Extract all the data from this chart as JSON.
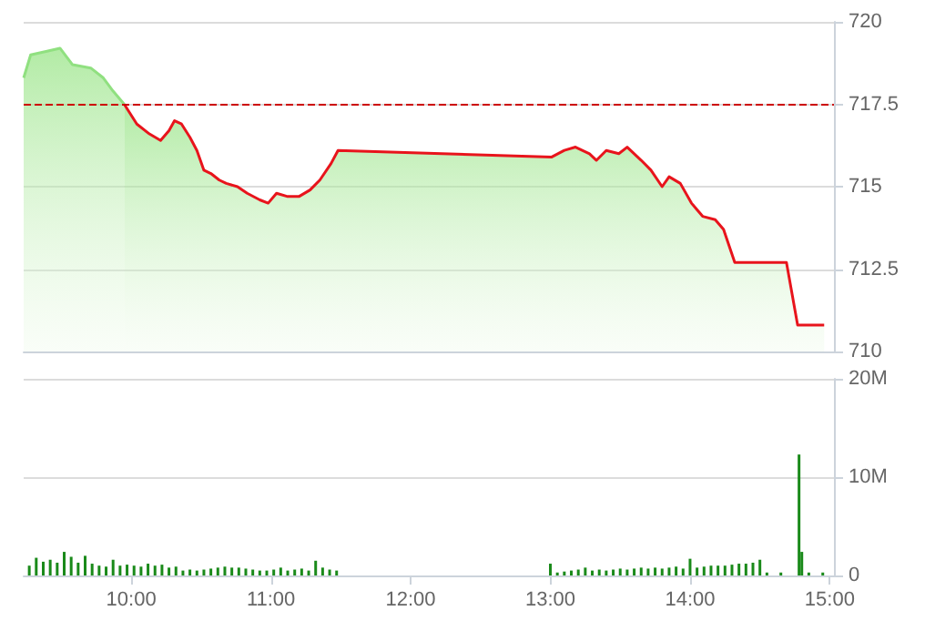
{
  "chart_data": [
    {
      "type": "area",
      "xlim": [
        9.23,
        15.03
      ],
      "ylim": [
        710,
        720
      ],
      "yticks": [
        710,
        {
          "value": 712.5,
          "label": "712.5"
        },
        715,
        {
          "value": 717.5,
          "label": "717.5"
        },
        720
      ],
      "grid": "y",
      "tick_labels": "y",
      "marker": "none",
      "ref_lines": [
        {
          "axis": "y",
          "value": 717.5,
          "color": "#cc0000",
          "line_style": "dashed"
        }
      ],
      "series": [
        {
          "color": "#90e080",
          "x": [
            9.23,
            9.28,
            9.39,
            9.49,
            9.58,
            9.71,
            9.8,
            9.87,
            9.95
          ],
          "values": [
            718.3,
            719.0,
            719.1,
            719.2,
            718.7,
            718.6,
            718.3,
            717.9,
            717.5
          ]
        },
        {
          "color": "#e8141c",
          "x": [
            9.95,
            10.04,
            10.13,
            10.21,
            10.27,
            10.31,
            10.36,
            10.42,
            10.47,
            10.52,
            10.57,
            10.63,
            10.68,
            10.76,
            10.83,
            10.92,
            10.98,
            11.04,
            11.12,
            11.2,
            11.28,
            11.35,
            11.43,
            11.48,
            13.01,
            13.1,
            13.18,
            13.28,
            13.33,
            13.4,
            13.49,
            13.55,
            13.65,
            13.72,
            13.8,
            13.85,
            13.93,
            14.01,
            14.09,
            14.18,
            14.24,
            14.32,
            14.4,
            14.69,
            14.77,
            14.96
          ],
          "values": [
            717.5,
            716.9,
            716.6,
            716.4,
            716.7,
            717.0,
            716.9,
            716.5,
            716.1,
            715.5,
            715.4,
            715.2,
            715.1,
            715.0,
            714.8,
            714.6,
            714.5,
            714.8,
            714.7,
            714.7,
            714.9,
            715.2,
            715.7,
            716.1,
            715.9,
            716.1,
            716.2,
            716.0,
            715.8,
            716.1,
            716.0,
            716.2,
            715.8,
            715.5,
            715.0,
            715.3,
            715.1,
            714.5,
            714.1,
            714.0,
            713.7,
            712.7,
            712.7,
            712.7,
            710.8,
            710.8
          ]
        }
      ]
    },
    {
      "type": "bar",
      "color": "#1a8a1a",
      "xlim": [
        9.23,
        15.03
      ],
      "xticks": [
        {
          "value": 10,
          "label": "10:00"
        },
        {
          "value": 11,
          "label": "11:00"
        },
        {
          "value": 12,
          "label": "12:00"
        },
        {
          "value": 13,
          "label": "13:00"
        },
        {
          "value": 14,
          "label": "14:00"
        },
        {
          "value": 15,
          "label": "15:00"
        }
      ],
      "ylim": [
        0,
        20
      ],
      "yticks": [
        0,
        {
          "value": 10,
          "label": "10M"
        },
        {
          "value": 20,
          "label": "20M"
        }
      ],
      "grid": "y",
      "x": [
        9.27,
        9.32,
        9.37,
        9.42,
        9.47,
        9.52,
        9.57,
        9.62,
        9.67,
        9.72,
        9.77,
        9.82,
        9.87,
        9.92,
        9.97,
        10.02,
        10.07,
        10.12,
        10.17,
        10.22,
        10.27,
        10.32,
        10.37,
        10.42,
        10.47,
        10.52,
        10.57,
        10.62,
        10.67,
        10.72,
        10.77,
        10.82,
        10.87,
        10.92,
        10.97,
        11.02,
        11.07,
        11.12,
        11.17,
        11.22,
        11.27,
        11.32,
        11.37,
        11.42,
        11.47,
        13.0,
        13.05,
        13.1,
        13.15,
        13.2,
        13.25,
        13.3,
        13.35,
        13.4,
        13.45,
        13.5,
        13.55,
        13.6,
        13.65,
        13.7,
        13.75,
        13.8,
        13.85,
        13.9,
        13.95,
        14.0,
        14.05,
        14.1,
        14.15,
        14.2,
        14.25,
        14.3,
        14.35,
        14.4,
        14.45,
        14.5,
        14.55,
        14.65,
        14.78,
        14.8,
        14.85,
        14.95
      ],
      "values": [
        1.0,
        1.8,
        1.4,
        1.6,
        1.3,
        2.4,
        1.9,
        1.3,
        2.0,
        1.2,
        1.0,
        0.9,
        1.6,
        1.0,
        1.1,
        1.0,
        0.9,
        1.2,
        1.0,
        1.1,
        0.8,
        0.9,
        0.5,
        0.6,
        0.5,
        0.6,
        0.7,
        0.8,
        0.9,
        0.8,
        0.8,
        0.7,
        0.6,
        0.5,
        0.5,
        0.6,
        0.8,
        0.5,
        0.6,
        0.7,
        0.5,
        1.5,
        0.8,
        0.6,
        0.5,
        1.2,
        0.3,
        0.4,
        0.5,
        0.6,
        0.8,
        0.5,
        0.6,
        0.5,
        0.6,
        0.7,
        0.6,
        0.7,
        0.8,
        0.7,
        0.8,
        0.7,
        0.8,
        0.9,
        0.7,
        1.7,
        0.8,
        0.9,
        1.0,
        1.0,
        1.0,
        1.1,
        1.2,
        1.2,
        1.3,
        1.6,
        0.3,
        0.3,
        12.3,
        2.4,
        0.3,
        0.3
      ]
    }
  ]
}
